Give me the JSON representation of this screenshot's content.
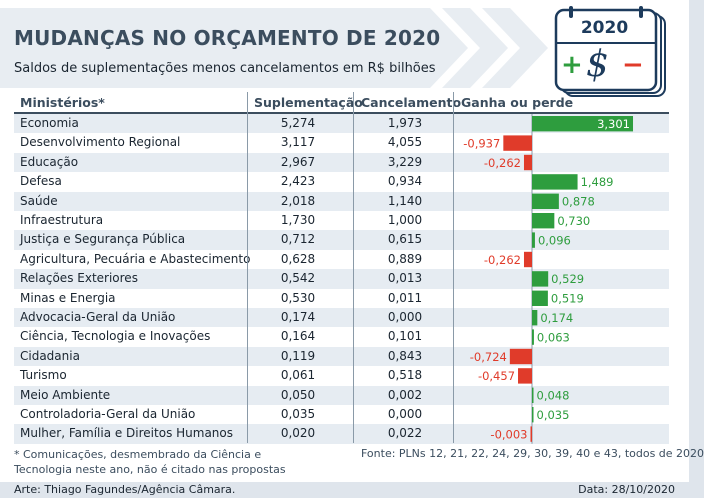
{
  "header": {
    "title": "MUDANÇAS NO ORÇAMENTO DE 2020",
    "subtitle": "Saldos de suplementações menos cancelamentos em R$ bilhões",
    "calendar_year": "2020",
    "calendar_plus": "+",
    "calendar_dollar": "$",
    "calendar_minus": "−"
  },
  "columns": {
    "ministries": "Ministérios*",
    "supplementation": "Suplementação",
    "cancellation": "Cancelamento",
    "net": "Ganha ou perde"
  },
  "rows": [
    {
      "name": "Economia",
      "sup": "5,274",
      "can": "1,973",
      "net_label": "3,301"
    },
    {
      "name": "Desenvolvimento Regional",
      "sup": "3,117",
      "can": "4,055",
      "net_label": "-0,937"
    },
    {
      "name": "Educação",
      "sup": "2,967",
      "can": "3,229",
      "net_label": "-0,262"
    },
    {
      "name": "Defesa",
      "sup": "2,423",
      "can": "0,934",
      "net_label": "1,489"
    },
    {
      "name": "Saúde",
      "sup": "2,018",
      "can": "1,140",
      "net_label": "0,878"
    },
    {
      "name": "Infraestrutura",
      "sup": "1,730",
      "can": "1,000",
      "net_label": "0,730"
    },
    {
      "name": "Justiça e Segurança Pública",
      "sup": "0,712",
      "can": "0,615",
      "net_label": "0,096"
    },
    {
      "name": "Agricultura, Pecuária e Abastecimento",
      "sup": "0,628",
      "can": "0,889",
      "net_label": "-0,262"
    },
    {
      "name": "Relações Exteriores",
      "sup": "0,542",
      "can": "0,013",
      "net_label": "0,529"
    },
    {
      "name": "Minas e Energia",
      "sup": "0,530",
      "can": "0,011",
      "net_label": "0,519"
    },
    {
      "name": "Advocacia-Geral da União",
      "sup": "0,174",
      "can": "0,000",
      "net_label": "0,174"
    },
    {
      "name": "Ciência, Tecnologia e Inovações",
      "sup": "0,164",
      "can": "0,101",
      "net_label": "0,063"
    },
    {
      "name": "Cidadania",
      "sup": "0,119",
      "can": "0,843",
      "net_label": "-0,724"
    },
    {
      "name": "Turismo",
      "sup": "0,061",
      "can": "0,518",
      "net_label": "-0,457"
    },
    {
      "name": "Meio Ambiente",
      "sup": "0,050",
      "can": "0,002",
      "net_label": "0,048"
    },
    {
      "name": "Controladoria-Geral da União",
      "sup": "0,035",
      "can": "0,000",
      "net_label": "0,035"
    },
    {
      "name": "Mulher, Família e Direitos Humanos",
      "sup": "0,020",
      "can": "0,022",
      "net_label": "-0,003"
    }
  ],
  "chart_data": {
    "type": "bar",
    "orientation": "horizontal",
    "title": "Ganha ou perde",
    "categories": [
      "Economia",
      "Desenvolvimento Regional",
      "Educação",
      "Defesa",
      "Saúde",
      "Infraestrutura",
      "Justiça e Segurança Pública",
      "Agricultura, Pecuária e Abastecimento",
      "Relações Exteriores",
      "Minas e Energia",
      "Advocacia-Geral da União",
      "Ciência, Tecnologia e Inovações",
      "Cidadania",
      "Turismo",
      "Meio Ambiente",
      "Controladoria-Geral da União",
      "Mulher, Família e Direitos Humanos"
    ],
    "values": [
      3.301,
      -0.937,
      -0.262,
      1.489,
      0.878,
      0.73,
      0.096,
      -0.262,
      0.529,
      0.519,
      0.174,
      0.063,
      -0.724,
      -0.457,
      0.048,
      0.035,
      -0.003
    ],
    "positive_color": "#2e9d3e",
    "negative_color": "#e03b2a",
    "xlim": [
      -1.1,
      3.5
    ],
    "unit": "R$ bilhões"
  },
  "notes": {
    "footnote": "* Comunicações, desmembrado da Ciência e Tecnologia neste ano, não é citado nas propostas",
    "source": "Fonte: PLNs 12, 21, 22, 24, 29, 30, 39, 40 e 43, todos de 2020"
  },
  "footer": {
    "credit": "Arte: Thiago Fagundes/Agência Câmara.",
    "date": "Data: 28/10/2020"
  }
}
